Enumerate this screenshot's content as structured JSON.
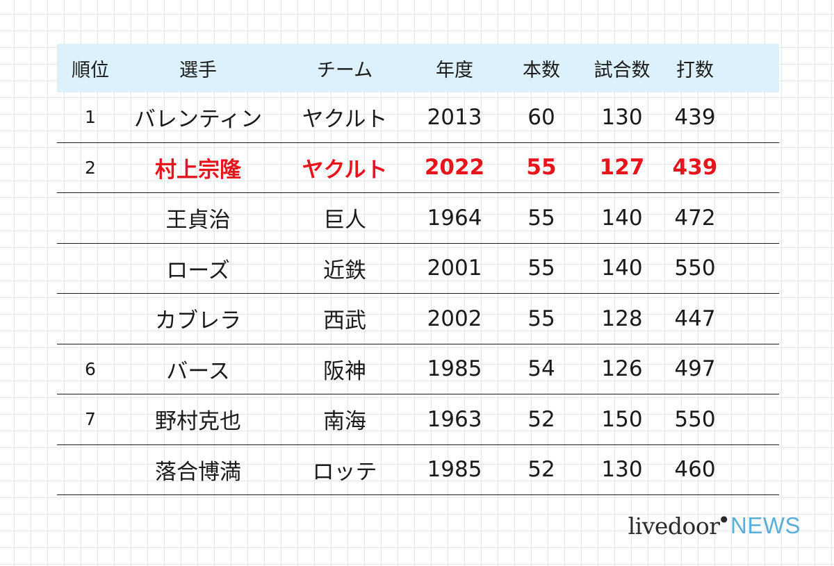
{
  "headers": {
    "rank": "順位",
    "player": "選手",
    "team": "チーム",
    "year": "年度",
    "home_runs": "本数",
    "games": "試合数",
    "at_bats": "打数"
  },
  "rows": [
    {
      "rank": "1",
      "player": "バレンティン",
      "team": "ヤクルト",
      "year": "2013",
      "home_runs": "60",
      "games": "130",
      "at_bats": "439"
    },
    {
      "rank": "2",
      "player": "村上宗隆",
      "team": "ヤクルト",
      "year": "2022",
      "home_runs": "55",
      "games": "127",
      "at_bats": "439"
    },
    {
      "rank": "",
      "player": "王貞治",
      "team": "巨人",
      "year": "1964",
      "home_runs": "55",
      "games": "140",
      "at_bats": "472"
    },
    {
      "rank": "",
      "player": "ローズ",
      "team": "近鉄",
      "year": "2001",
      "home_runs": "55",
      "games": "140",
      "at_bats": "550"
    },
    {
      "rank": "",
      "player": "カブレラ",
      "team": "西武",
      "year": "2002",
      "home_runs": "55",
      "games": "128",
      "at_bats": "447"
    },
    {
      "rank": "6",
      "player": "バース",
      "team": "阪神",
      "year": "1985",
      "home_runs": "54",
      "games": "126",
      "at_bats": "497"
    },
    {
      "rank": "7",
      "player": "野村克也",
      "team": "南海",
      "year": "1963",
      "home_runs": "52",
      "games": "150",
      "at_bats": "550"
    },
    {
      "rank": "",
      "player": "落合博満",
      "team": "ロッテ",
      "year": "1985",
      "home_runs": "52",
      "games": "130",
      "at_bats": "460"
    }
  ],
  "colors": {
    "header_bg": "#dcf1fb",
    "highlight_text": "#e8141b",
    "logo_news": "#5aaed8"
  },
  "logo": {
    "livedoor": "livedoor",
    "news": "NEWS"
  }
}
